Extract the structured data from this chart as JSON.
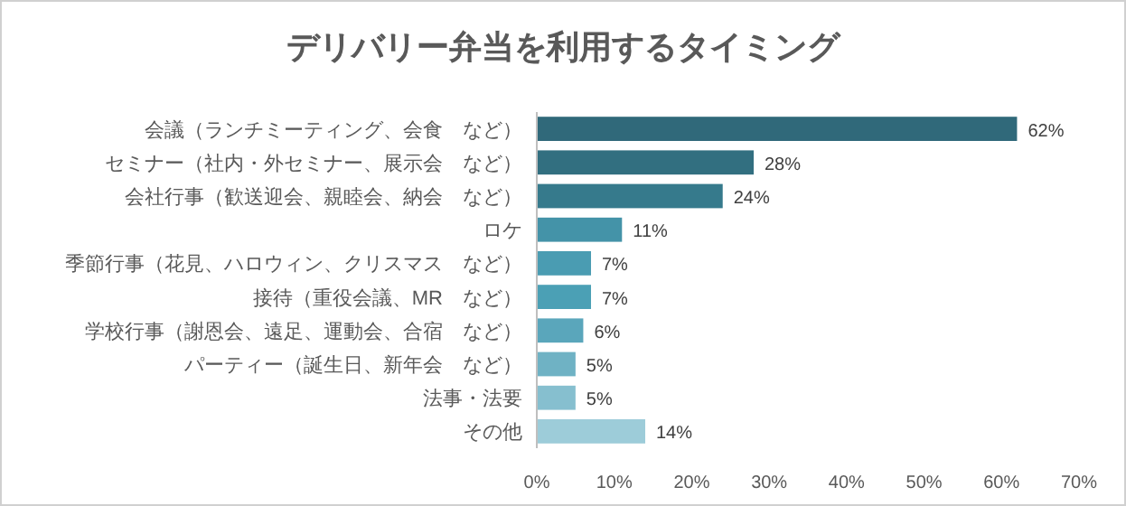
{
  "chart_data": {
    "type": "bar",
    "orientation": "horizontal",
    "title": "デリバリー弁当を利用するタイミング",
    "categories": [
      "会議（ランチミーティング、会食　など）",
      "セミナー（社内・外セミナー、展示会　など）",
      "会社行事（歓送迎会、親睦会、納会　など）",
      "ロケ",
      "季節行事（花見、ハロウィン、クリスマス　など）",
      "接待（重役会議、MR　など）",
      "学校行事（謝恩会、遠足、運動会、合宿　など）",
      "パーティー（誕生日、新年会　など）",
      "法事・法要",
      "その他"
    ],
    "values": [
      62,
      28,
      24,
      11,
      7,
      7,
      6,
      5,
      5,
      14
    ],
    "value_labels": [
      "62%",
      "28%",
      "24%",
      "11%",
      "7%",
      "7%",
      "6%",
      "5%",
      "5%",
      "14%"
    ],
    "colors": [
      "#30697a",
      "#326f80",
      "#367a8c",
      "#4493a8",
      "#4a9cb2",
      "#4ba0b5",
      "#5aa6bb",
      "#6fb2c4",
      "#86bfcf",
      "#9dccd9"
    ],
    "xlim": [
      0,
      70
    ],
    "xticks": [
      {
        "value": 0,
        "label": "0%"
      },
      {
        "value": 10,
        "label": "10%"
      },
      {
        "value": 20,
        "label": "20%"
      },
      {
        "value": 30,
        "label": "30%"
      },
      {
        "value": 40,
        "label": "40%"
      },
      {
        "value": 50,
        "label": "50%"
      },
      {
        "value": 60,
        "label": "60%"
      },
      {
        "value": 70,
        "label": "70%"
      }
    ],
    "grid": false
  }
}
